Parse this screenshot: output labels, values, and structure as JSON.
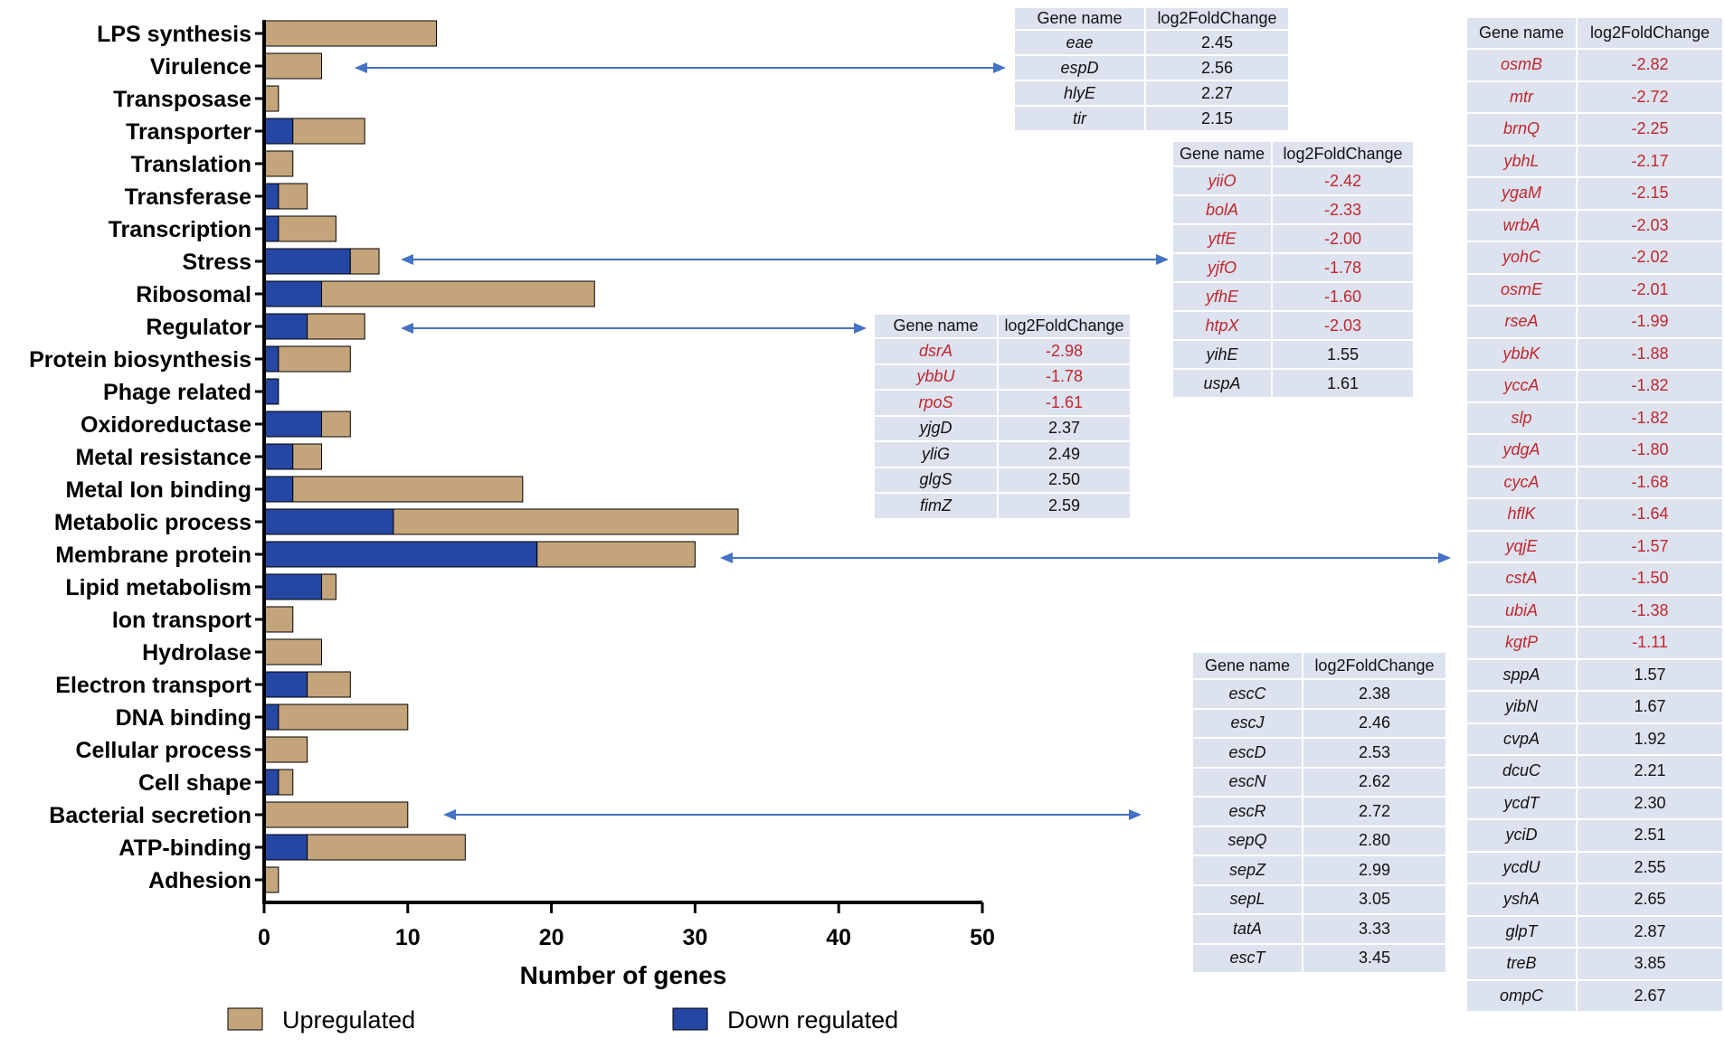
{
  "colors": {
    "up": "#c4a57b",
    "down": "#2546a3",
    "neg_text": "#c0272d",
    "arrow": "#4472c4",
    "table_bg": "#dde2ef"
  },
  "chart_data": {
    "type": "bar",
    "orientation": "horizontal",
    "stacked": true,
    "categories": [
      "LPS synthesis",
      "Virulence",
      "Transposase",
      "Transporter",
      "Translation",
      "Transferase",
      "Transcription",
      "Stress",
      "Ribosomal",
      "Regulator",
      "Protein biosynthesis",
      "Phage related",
      "Oxidoreductase",
      "Metal resistance",
      "Metal Ion binding",
      "Metabolic process",
      "Membrane protein",
      "Lipid metabolism",
      "Ion transport",
      "Hydrolase",
      "Electron transport",
      "DNA binding",
      "Cellular process",
      "Cell shape",
      "Bacterial secretion",
      "ATP-binding",
      "Adhesion"
    ],
    "series": [
      {
        "name": "Down regulated",
        "values": [
          0,
          0,
          0,
          2,
          0,
          1,
          1,
          6,
          4,
          3,
          1,
          1,
          4,
          2,
          2,
          9,
          19,
          4,
          0,
          0,
          3,
          1,
          0,
          1,
          0,
          3,
          0
        ]
      },
      {
        "name": "Upregulated",
        "values": [
          12,
          4,
          1,
          5,
          2,
          2,
          4,
          2,
          19,
          4,
          5,
          0,
          2,
          2,
          16,
          24,
          11,
          1,
          2,
          4,
          3,
          9,
          3,
          1,
          10,
          11,
          1
        ]
      }
    ],
    "xlabel": "Number of genes",
    "ylabel": "",
    "xlim": [
      0,
      50
    ],
    "xticks": [
      "0",
      "10",
      "20",
      "30",
      "40",
      "50"
    ],
    "legend": [
      {
        "label": "Upregulated",
        "series": "Upregulated"
      },
      {
        "label": "Down regulated",
        "series": "Down regulated"
      }
    ],
    "legend_position": "bottom",
    "annotations": [
      "arrow Virulence to table-1",
      "arrow Stress to table-2",
      "arrow Regulator to table-3",
      "arrow Membrane protein to table-4",
      "arrow Bacterial secretion to table-5"
    ]
  },
  "tables": [
    {
      "header": [
        "Gene name",
        "log2FoldChange"
      ],
      "rows": [
        [
          "eae",
          "2.45",
          false
        ],
        [
          "espD",
          "2.56",
          false
        ],
        [
          "hlyE",
          "2.27",
          false
        ],
        [
          "tir",
          "2.15",
          false
        ]
      ]
    },
    {
      "header": [
        "Gene name",
        "log2FoldChange"
      ],
      "rows": [
        [
          "yiiO",
          "-2.42",
          true
        ],
        [
          "bolA",
          "-2.33",
          true
        ],
        [
          "ytfE",
          "-2.00",
          true
        ],
        [
          "yjfO",
          "-1.78",
          true
        ],
        [
          "yfhE",
          "-1.60",
          true
        ],
        [
          "htpX",
          "-2.03",
          true
        ],
        [
          "yihE",
          "1.55",
          false
        ],
        [
          "uspA",
          "1.61",
          false
        ]
      ]
    },
    {
      "header": [
        "Gene name",
        "log2FoldChange"
      ],
      "rows": [
        [
          "dsrA",
          "-2.98",
          true
        ],
        [
          "ybbU",
          "-1.78",
          true
        ],
        [
          "rpoS",
          "-1.61",
          true
        ],
        [
          "yjgD",
          "2.37",
          false
        ],
        [
          "yliG",
          "2.49",
          false
        ],
        [
          "glgS",
          "2.50",
          false
        ],
        [
          "fimZ",
          "2.59",
          false
        ]
      ]
    },
    {
      "header": [
        "Gene name",
        "log2FoldChange"
      ],
      "rows": [
        [
          "osmB",
          "-2.82",
          true
        ],
        [
          "mtr",
          "-2.72",
          true
        ],
        [
          "brnQ",
          "-2.25",
          true
        ],
        [
          "ybhL",
          "-2.17",
          true
        ],
        [
          "ygaM",
          "-2.15",
          true
        ],
        [
          "wrbA",
          "-2.03",
          true
        ],
        [
          "yohC",
          "-2.02",
          true
        ],
        [
          "osmE",
          "-2.01",
          true
        ],
        [
          "rseA",
          "-1.99",
          true
        ],
        [
          "ybbK",
          "-1.88",
          true
        ],
        [
          "yccA",
          "-1.82",
          true
        ],
        [
          "slp",
          "-1.82",
          true
        ],
        [
          "ydgA",
          "-1.80",
          true
        ],
        [
          "cycA",
          "-1.68",
          true
        ],
        [
          "hflK",
          "-1.64",
          true
        ],
        [
          "yqjE",
          "-1.57",
          true
        ],
        [
          "cstA",
          "-1.50",
          true
        ],
        [
          "ubiA",
          "-1.38",
          true
        ],
        [
          "kgtP",
          "-1.11",
          true
        ],
        [
          "sppA",
          "1.57",
          false
        ],
        [
          "yibN",
          "1.67",
          false
        ],
        [
          "cvpA",
          "1.92",
          false
        ],
        [
          "dcuC",
          "2.21",
          false
        ],
        [
          "ycdT",
          "2.30",
          false
        ],
        [
          "yciD",
          "2.51",
          false
        ],
        [
          "ycdU",
          "2.55",
          false
        ],
        [
          "yshA",
          "2.65",
          false
        ],
        [
          "glpT",
          "2.87",
          false
        ],
        [
          "treB",
          "3.85",
          false
        ],
        [
          "ompC",
          "2.67",
          false
        ]
      ]
    },
    {
      "header": [
        "Gene name",
        "log2FoldChange"
      ],
      "rows": [
        [
          "escC",
          "2.38",
          false
        ],
        [
          "escJ",
          "2.46",
          false
        ],
        [
          "escD",
          "2.53",
          false
        ],
        [
          "escN",
          "2.62",
          false
        ],
        [
          "escR",
          "2.72",
          false
        ],
        [
          "sepQ",
          "2.80",
          false
        ],
        [
          "sepZ",
          "2.99",
          false
        ],
        [
          "sepL",
          "3.05",
          false
        ],
        [
          "tatA",
          "3.33",
          false
        ],
        [
          "escT",
          "3.45",
          false
        ]
      ]
    }
  ]
}
